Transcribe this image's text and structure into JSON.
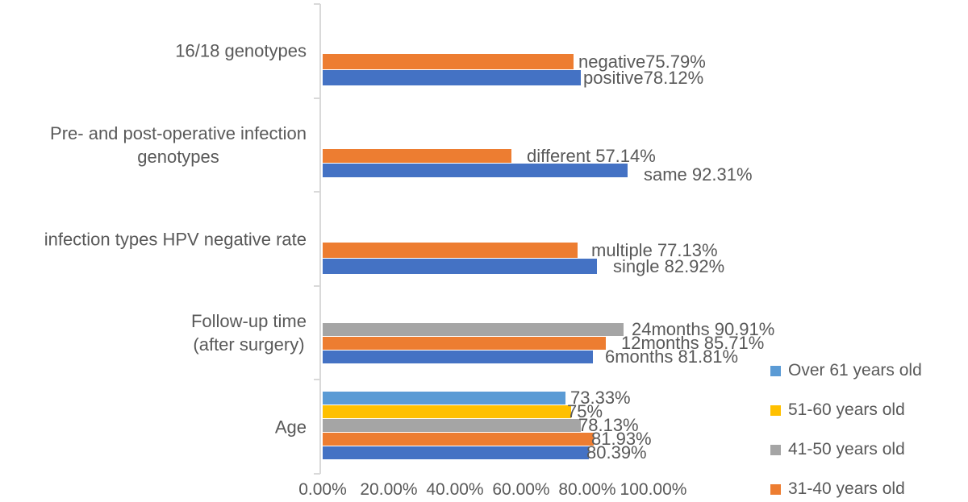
{
  "chart_data": {
    "type": "bar",
    "orientation": "horizontal",
    "title": "",
    "grid": false,
    "background": "#ffffff",
    "text_color": "#595959",
    "axis_color": "#d9d9d9",
    "x_axis": {
      "min": 0,
      "max": 100,
      "unit": "%",
      "tick_labels": [
        "0.00%",
        "20.00%",
        "40.00%",
        "60.00%",
        "80.00%",
        "100.00%"
      ]
    },
    "groups": [
      {
        "category": "16/18 genotypes",
        "category_lines": [
          "16/18 genotypes"
        ],
        "bars": [
          {
            "label": "negative75.79%",
            "value": 75.79,
            "color": "#ED7D31"
          },
          {
            "label": "positive78.12%",
            "value": 78.12,
            "color": "#4472C4"
          }
        ]
      },
      {
        "category": "Pre- and post-operative infection genotypes",
        "category_lines": [
          "Pre- and post-operative infection",
          "genotypes"
        ],
        "bars": [
          {
            "label": "different 57.14%",
            "value": 57.14,
            "color": "#ED7D31"
          },
          {
            "label": "same 92.31%",
            "value": 92.31,
            "color": "#4472C4"
          }
        ]
      },
      {
        "category": "infection types HPV negative rate",
        "category_lines": [
          "infection types HPV negative rate"
        ],
        "bars": [
          {
            "label": "multiple 77.13%",
            "value": 77.13,
            "color": "#ED7D31"
          },
          {
            "label": "single 82.92%",
            "value": 82.92,
            "color": "#4472C4"
          }
        ]
      },
      {
        "category": "Follow-up time (after surgery)",
        "category_lines": [
          "Follow-up time",
          "(after surgery)"
        ],
        "bars": [
          {
            "label": "24months 90.91%",
            "value": 90.91,
            "color": "#A5A5A5"
          },
          {
            "label": "12months 85.71%",
            "value": 85.71,
            "color": "#ED7D31"
          },
          {
            "label": "6months 81.81%",
            "value": 81.81,
            "color": "#4472C4"
          }
        ]
      },
      {
        "category": "Age",
        "category_lines": [
          "Age"
        ],
        "bars": [
          {
            "label": "73.33%",
            "value": 73.33,
            "color": "#5B9BD5",
            "series": "Over 61 years old"
          },
          {
            "label": "75%",
            "value": 75,
            "color": "#FFC000",
            "series": "51-60 years old"
          },
          {
            "label": "78.13%",
            "value": 78.13,
            "color": "#A5A5A5",
            "series": "41-50 years old"
          },
          {
            "label": "81.93%",
            "value": 81.93,
            "color": "#ED7D31",
            "series": "31-40 years old"
          },
          {
            "label": "80.39%",
            "value": 80.39,
            "color": "#4472C4"
          }
        ]
      }
    ],
    "legend_position": "bottom-right",
    "legend": [
      {
        "label": "Over 61 years old",
        "color": "#5B9BD5"
      },
      {
        "label": "51-60 years old",
        "color": "#FFC000"
      },
      {
        "label": "41-50 years old",
        "color": "#A5A5A5"
      },
      {
        "label": "31-40 years old",
        "color": "#ED7D31"
      }
    ]
  }
}
